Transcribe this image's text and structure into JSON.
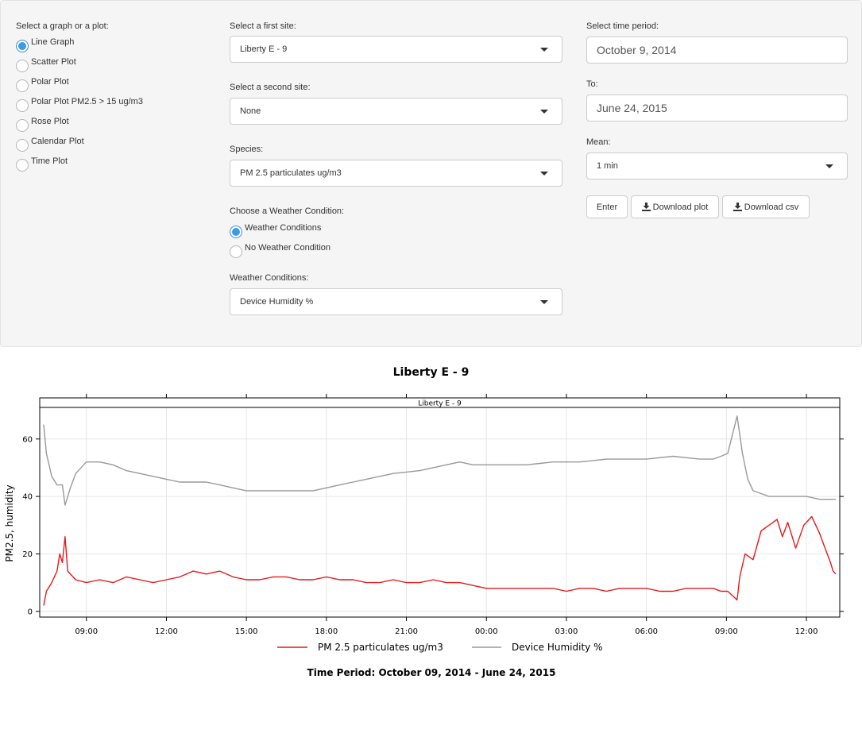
{
  "graph_select": {
    "label": "Select a graph or a plot:",
    "options": [
      "Line Graph",
      "Scatter Plot",
      "Polar Plot",
      "Polar Plot PM2.5 > 15 ug/m3",
      "Rose Plot",
      "Calendar Plot",
      "Time Plot"
    ],
    "selected": 0
  },
  "site1": {
    "label": "Select a first site:",
    "value": "Liberty E - 9"
  },
  "site2": {
    "label": "Select a second site:",
    "value": "None"
  },
  "species": {
    "label": "Species:",
    "value": "PM 2.5 particulates ug/m3"
  },
  "weather_choice": {
    "label": "Choose a Weather Condition:",
    "options": [
      "Weather Conditions",
      "No Weather Condition"
    ],
    "selected": 0
  },
  "weather_conditions": {
    "label": "Weather Conditions:",
    "value": "Device Humidity %"
  },
  "time_period": {
    "label": "Select time period:",
    "from": "October 9, 2014",
    "to_label": "To:",
    "to": "June 24, 2015"
  },
  "mean": {
    "label": "Mean:",
    "value": "1 min"
  },
  "buttons": {
    "enter": "Enter",
    "download_plot": "Download plot",
    "download_csv": "Download csv"
  },
  "colors": {
    "pm25": "#e41a1c",
    "humidity": "#999999",
    "accent": "#3a9be6"
  },
  "chart_data": {
    "type": "line",
    "title": "Liberty E  -  9",
    "strip_label": "Liberty E  -  9",
    "ylabel": "PM2.5, humidity",
    "xlabel": "",
    "footer": "Time Period:  October 09, 2014  -  June 24, 2015",
    "x_unit": "hours since 00:00 on first day",
    "xlim": [
      7.25,
      37.25
    ],
    "ylim": [
      -2,
      71
    ],
    "yticks": [
      0,
      20,
      40,
      60
    ],
    "xticks": [
      {
        "x": 9,
        "label": "09:00"
      },
      {
        "x": 12,
        "label": "12:00"
      },
      {
        "x": 15,
        "label": "15:00"
      },
      {
        "x": 18,
        "label": "18:00"
      },
      {
        "x": 21,
        "label": "21:00"
      },
      {
        "x": 24,
        "label": "00:00"
      },
      {
        "x": 27,
        "label": "03:00"
      },
      {
        "x": 30,
        "label": "06:00"
      },
      {
        "x": 33,
        "label": "09:00"
      },
      {
        "x": 36,
        "label": "12:00"
      }
    ],
    "grid": true,
    "legend_position": "bottom",
    "series": [
      {
        "name": "PM 2.5 particulates ug/m3",
        "color": "#e41a1c",
        "points": [
          [
            7.4,
            2
          ],
          [
            7.5,
            7
          ],
          [
            7.7,
            10
          ],
          [
            7.9,
            14
          ],
          [
            8.0,
            20
          ],
          [
            8.1,
            17
          ],
          [
            8.2,
            26
          ],
          [
            8.3,
            14
          ],
          [
            8.6,
            11
          ],
          [
            9.0,
            10
          ],
          [
            9.5,
            11
          ],
          [
            10.0,
            10
          ],
          [
            10.5,
            12
          ],
          [
            11.0,
            11
          ],
          [
            11.5,
            10
          ],
          [
            12.0,
            11
          ],
          [
            12.5,
            12
          ],
          [
            13.0,
            14
          ],
          [
            13.5,
            13
          ],
          [
            14.0,
            14
          ],
          [
            14.5,
            12
          ],
          [
            15.0,
            11
          ],
          [
            15.5,
            11
          ],
          [
            16.0,
            12
          ],
          [
            16.5,
            12
          ],
          [
            17.0,
            11
          ],
          [
            17.5,
            11
          ],
          [
            18.0,
            12
          ],
          [
            18.5,
            11
          ],
          [
            19.0,
            11
          ],
          [
            19.5,
            10
          ],
          [
            20.0,
            10
          ],
          [
            20.5,
            11
          ],
          [
            21.0,
            10
          ],
          [
            21.5,
            10
          ],
          [
            22.0,
            11
          ],
          [
            22.5,
            10
          ],
          [
            23.0,
            10
          ],
          [
            23.5,
            9
          ],
          [
            24.0,
            8
          ],
          [
            24.5,
            8
          ],
          [
            25.0,
            8
          ],
          [
            25.5,
            8
          ],
          [
            26.0,
            8
          ],
          [
            26.5,
            8
          ],
          [
            27.0,
            7
          ],
          [
            27.5,
            8
          ],
          [
            28.0,
            8
          ],
          [
            28.5,
            7
          ],
          [
            29.0,
            8
          ],
          [
            29.5,
            8
          ],
          [
            30.0,
            8
          ],
          [
            30.5,
            7
          ],
          [
            31.0,
            7
          ],
          [
            31.5,
            8
          ],
          [
            32.0,
            8
          ],
          [
            32.5,
            8
          ],
          [
            32.8,
            7
          ],
          [
            33.05,
            7
          ],
          [
            33.4,
            4
          ],
          [
            33.5,
            12
          ],
          [
            33.7,
            20
          ],
          [
            34.0,
            18
          ],
          [
            34.3,
            28
          ],
          [
            34.6,
            30
          ],
          [
            34.9,
            32
          ],
          [
            35.1,
            26
          ],
          [
            35.3,
            31
          ],
          [
            35.6,
            22
          ],
          [
            35.9,
            30
          ],
          [
            36.2,
            33
          ],
          [
            36.5,
            27
          ],
          [
            36.7,
            22
          ],
          [
            36.9,
            17
          ],
          [
            37.0,
            14
          ],
          [
            37.1,
            13
          ]
        ]
      },
      {
        "name": "Device Humidity %",
        "color": "#999999",
        "points": [
          [
            7.4,
            65
          ],
          [
            7.5,
            55
          ],
          [
            7.7,
            47
          ],
          [
            7.9,
            44
          ],
          [
            8.0,
            44
          ],
          [
            8.1,
            44
          ],
          [
            8.2,
            37
          ],
          [
            8.4,
            43
          ],
          [
            8.6,
            48
          ],
          [
            9.0,
            52
          ],
          [
            9.5,
            52
          ],
          [
            10.0,
            51
          ],
          [
            10.5,
            49
          ],
          [
            11.0,
            48
          ],
          [
            11.5,
            47
          ],
          [
            12.0,
            46
          ],
          [
            12.5,
            45
          ],
          [
            13.0,
            45
          ],
          [
            13.5,
            45
          ],
          [
            14.0,
            44
          ],
          [
            14.5,
            43
          ],
          [
            15.0,
            42
          ],
          [
            15.5,
            42
          ],
          [
            16.0,
            42
          ],
          [
            16.5,
            42
          ],
          [
            17.0,
            42
          ],
          [
            17.5,
            42
          ],
          [
            18.0,
            43
          ],
          [
            18.5,
            44
          ],
          [
            19.0,
            45
          ],
          [
            19.5,
            46
          ],
          [
            20.0,
            47
          ],
          [
            20.5,
            48
          ],
          [
            21.0,
            48.5
          ],
          [
            21.5,
            49
          ],
          [
            22.0,
            50
          ],
          [
            22.5,
            51
          ],
          [
            23.0,
            52
          ],
          [
            23.5,
            51
          ],
          [
            24.0,
            51
          ],
          [
            24.5,
            51
          ],
          [
            25.0,
            51
          ],
          [
            25.5,
            51
          ],
          [
            26.0,
            51.5
          ],
          [
            26.5,
            52
          ],
          [
            27.0,
            52
          ],
          [
            27.5,
            52
          ],
          [
            28.0,
            52.5
          ],
          [
            28.5,
            53
          ],
          [
            29.0,
            53
          ],
          [
            29.5,
            53
          ],
          [
            30.0,
            53
          ],
          [
            30.5,
            53.5
          ],
          [
            31.0,
            54
          ],
          [
            31.5,
            53.5
          ],
          [
            32.0,
            53
          ],
          [
            32.5,
            53
          ],
          [
            32.8,
            54
          ],
          [
            33.05,
            55
          ],
          [
            33.4,
            68
          ],
          [
            33.6,
            55
          ],
          [
            33.8,
            46
          ],
          [
            34.0,
            42
          ],
          [
            34.3,
            41
          ],
          [
            34.6,
            40
          ],
          [
            35.0,
            40
          ],
          [
            35.5,
            40
          ],
          [
            36.0,
            40
          ],
          [
            36.5,
            39
          ],
          [
            36.8,
            39
          ],
          [
            37.1,
            39
          ]
        ]
      }
    ]
  }
}
